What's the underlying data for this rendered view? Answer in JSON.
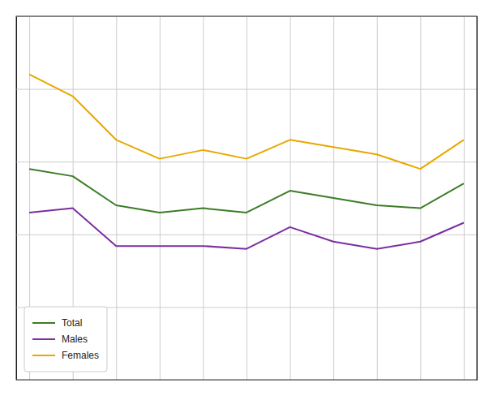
{
  "chart_data": {
    "type": "line",
    "x": [
      0,
      1,
      2,
      3,
      4,
      5,
      6,
      7,
      8,
      9,
      10
    ],
    "series": [
      {
        "name": "Total",
        "color": "#3a7d27",
        "values": [
          14.5,
          14.0,
          12.0,
          11.5,
          11.8,
          11.5,
          13.0,
          12.5,
          12.0,
          11.8,
          13.5
        ]
      },
      {
        "name": "Males",
        "color": "#7b2fa0",
        "values": [
          11.5,
          11.8,
          9.2,
          9.2,
          9.2,
          9.0,
          10.5,
          9.5,
          9.0,
          9.5,
          10.8
        ]
      },
      {
        "name": "Females",
        "color": "#e8a800",
        "values": [
          21.0,
          19.5,
          16.5,
          15.2,
          15.8,
          15.2,
          16.5,
          16.0,
          15.5,
          14.5,
          16.5
        ]
      }
    ],
    "xlim": [
      -0.3,
      10.3
    ],
    "xticks": [
      0,
      1,
      2,
      3,
      4,
      5,
      6,
      7,
      8,
      9,
      10
    ],
    "ylim": [
      0,
      25
    ],
    "yticks": [
      0,
      5,
      10,
      15,
      20,
      25
    ],
    "grid": true,
    "tick_labels": false,
    "legend": "lower left"
  }
}
